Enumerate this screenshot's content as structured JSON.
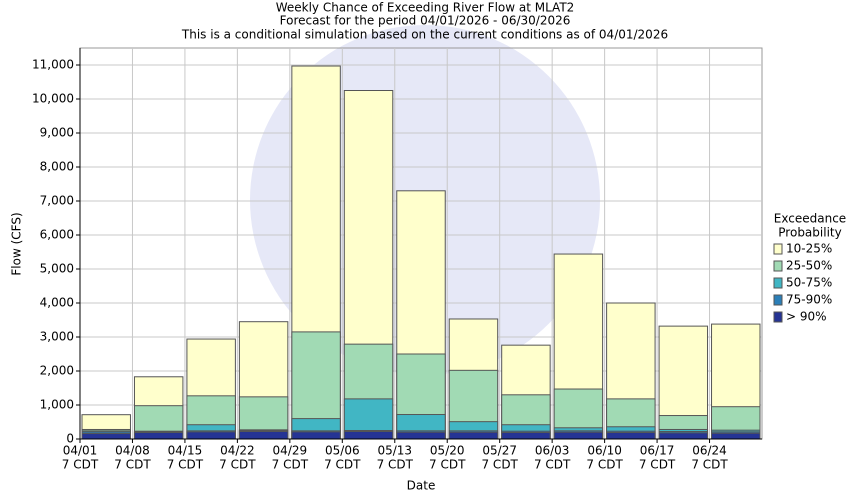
{
  "chart_data": {
    "type": "overlay-bar",
    "title": "Weekly Chance of Exceeding River Flow at MLAT2",
    "subtitle": "Forecast for the period 04/01/2026 - 06/30/2026",
    "subtitle2": "This is a conditional simulation based on the current conditions as of 04/01/2026",
    "x_label": "Date",
    "y_label": "Flow (CFS)",
    "legend_title": [
      "Exceedance",
      "Probability"
    ],
    "categories": [
      "04/01",
      "04/08",
      "04/15",
      "04/22",
      "04/29",
      "05/06",
      "05/13",
      "05/20",
      "05/27",
      "06/03",
      "06/10",
      "06/17",
      "06/24"
    ],
    "category_sublabels": [
      "7 CDT",
      "7 CDT",
      "7 CDT",
      "7 CDT",
      "7 CDT",
      "7 CDT",
      "7 CDT",
      "7 CDT",
      "7 CDT",
      "7 CDT",
      "7 CDT",
      "7 CDT",
      "7 CDT"
    ],
    "series": [
      {
        "name": "10-25%",
        "color": "#ffffcc",
        "values": [
          715,
          1830,
          2940,
          3450,
          10970,
          10250,
          7300,
          3530,
          2760,
          5440,
          4000,
          3320,
          3380
        ]
      },
      {
        "name": "25-50%",
        "color": "#a1dab4",
        "values": [
          280,
          980,
          1270,
          1240,
          3150,
          2790,
          2500,
          2020,
          1300,
          1470,
          1180,
          690,
          950
        ]
      },
      {
        "name": "50-75%",
        "color": "#41b6c4",
        "values": [
          240,
          230,
          420,
          270,
          600,
          1180,
          720,
          510,
          420,
          330,
          360,
          280,
          260
        ]
      },
      {
        "name": "75-90%",
        "color": "#2c7fb8",
        "values": [
          210,
          215,
          240,
          250,
          240,
          250,
          240,
          240,
          230,
          240,
          230,
          220,
          210
        ]
      },
      {
        "name": "> 90%",
        "color": "#253494",
        "values": [
          160,
          190,
          210,
          220,
          210,
          220,
          200,
          200,
          190,
          200,
          190,
          180,
          170
        ]
      }
    ],
    "ylim": [
      0,
      11500
    ],
    "yticks": [
      0,
      {
        "value": 1000,
        "label": "1,000"
      },
      {
        "value": 2000,
        "label": "2,000"
      },
      {
        "value": 3000,
        "label": "3,000"
      },
      {
        "value": 4000,
        "label": "4,000"
      },
      {
        "value": 5000,
        "label": "5,000"
      },
      {
        "value": 6000,
        "label": "6,000"
      },
      {
        "value": 7000,
        "label": "7,000"
      },
      {
        "value": 8000,
        "label": "8,000"
      },
      {
        "value": 9000,
        "label": "9,000"
      },
      {
        "value": 10000,
        "label": "10,000"
      },
      {
        "value": 11000,
        "label": "11,000"
      }
    ],
    "grid": true
  }
}
